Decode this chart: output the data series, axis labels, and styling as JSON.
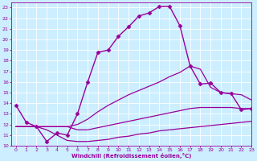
{
  "background_color": "#cceeff",
  "line_color": "#990099",
  "grid_color": "#ffffff",
  "xlim": [
    -0.5,
    23
  ],
  "ylim": [
    10,
    23.5
  ],
  "xticks": [
    0,
    1,
    2,
    3,
    4,
    5,
    6,
    7,
    8,
    9,
    10,
    11,
    12,
    13,
    14,
    15,
    16,
    17,
    18,
    19,
    20,
    21,
    22,
    23
  ],
  "yticks": [
    10,
    11,
    12,
    13,
    14,
    15,
    16,
    17,
    18,
    19,
    20,
    21,
    22,
    23
  ],
  "xlabel": "Windchill (Refroidissement éolien,°C)",
  "series": [
    {
      "x": [
        0,
        1,
        2,
        3,
        4,
        5,
        6,
        7,
        8,
        9,
        10,
        11,
        12,
        13,
        14,
        15,
        16,
        17,
        18,
        19,
        20,
        21,
        22,
        23
      ],
      "y": [
        13.8,
        12.2,
        11.8,
        10.4,
        11.2,
        11.0,
        13.0,
        16.0,
        18.8,
        19.0,
        20.3,
        21.2,
        22.2,
        22.5,
        23.1,
        23.1,
        21.3,
        17.5,
        15.8,
        15.9,
        15.0,
        14.9,
        13.4,
        13.5
      ],
      "marker": "D",
      "markersize": 2.5,
      "linewidth": 1.0
    },
    {
      "x": [
        0,
        1,
        2,
        3,
        4,
        5,
        6,
        7,
        8,
        9,
        10,
        11,
        12,
        13,
        14,
        15,
        16,
        17,
        18,
        19,
        20,
        21,
        22,
        23
      ],
      "y": [
        11.8,
        11.8,
        11.8,
        11.8,
        11.8,
        11.8,
        12.0,
        12.5,
        13.2,
        13.8,
        14.3,
        14.8,
        15.2,
        15.6,
        16.0,
        16.5,
        16.9,
        17.5,
        17.2,
        15.5,
        15.0,
        14.9,
        14.8,
        14.3
      ],
      "marker": "",
      "markersize": 0,
      "linewidth": 0.9
    },
    {
      "x": [
        0,
        1,
        2,
        3,
        4,
        5,
        6,
        7,
        8,
        9,
        10,
        11,
        12,
        13,
        14,
        15,
        16,
        17,
        18,
        19,
        20,
        21,
        22,
        23
      ],
      "y": [
        11.8,
        11.8,
        11.8,
        11.8,
        11.8,
        11.8,
        11.5,
        11.5,
        11.7,
        11.9,
        12.1,
        12.3,
        12.5,
        12.7,
        12.9,
        13.1,
        13.3,
        13.5,
        13.6,
        13.6,
        13.6,
        13.6,
        13.5,
        13.5
      ],
      "marker": "",
      "markersize": 0,
      "linewidth": 0.9
    },
    {
      "x": [
        0,
        1,
        2,
        3,
        4,
        5,
        6,
        7,
        8,
        9,
        10,
        11,
        12,
        13,
        14,
        15,
        16,
        17,
        18,
        19,
        20,
        21,
        22,
        23
      ],
      "y": [
        11.8,
        11.8,
        11.8,
        11.5,
        11.0,
        10.5,
        10.4,
        10.4,
        10.5,
        10.6,
        10.8,
        10.9,
        11.1,
        11.2,
        11.4,
        11.5,
        11.6,
        11.7,
        11.8,
        11.9,
        12.0,
        12.1,
        12.2,
        12.3
      ],
      "marker": "",
      "markersize": 0,
      "linewidth": 0.9
    }
  ]
}
